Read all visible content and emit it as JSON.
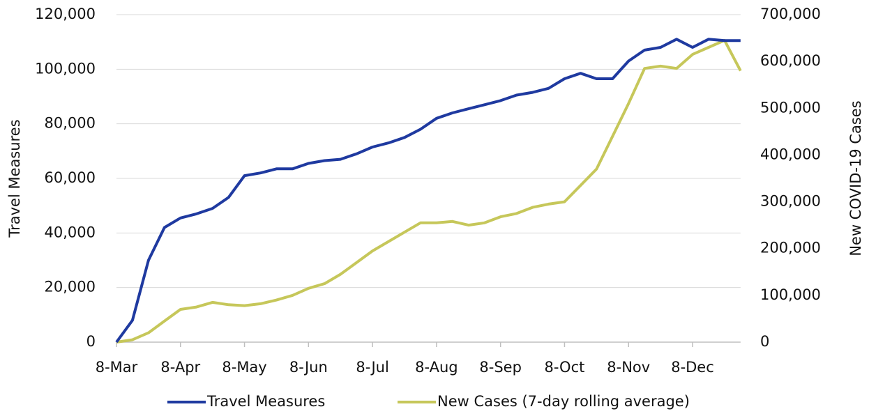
{
  "chart_data": {
    "type": "line",
    "y_label": "Travel Measures",
    "y2_label": "New COVID-19 Cases",
    "categories": [
      "8-Mar",
      null,
      null,
      null,
      "8-Apr",
      null,
      null,
      null,
      "8-May",
      null,
      null,
      null,
      "8-Jun",
      null,
      null,
      null,
      "8-Jul",
      null,
      null,
      null,
      "8-Aug",
      null,
      null,
      null,
      "8-Sep",
      null,
      null,
      null,
      "8-Oct",
      null,
      null,
      null,
      "8-Nov",
      null,
      null,
      null,
      "8-Dec",
      null,
      null,
      null
    ],
    "series": [
      {
        "name": "Travel Measures",
        "color": "#1f3aa0",
        "values": [
          0,
          8000,
          30000,
          42000,
          45500,
          47000,
          49000,
          53000,
          61000,
          62000,
          63500,
          63500,
          65500,
          66500,
          67000,
          69000,
          71500,
          73000,
          75000,
          78000,
          82000,
          84000,
          85500,
          87000,
          88500,
          90500,
          91500,
          93000,
          96500,
          98500,
          96500,
          96500,
          103000,
          107000,
          108000,
          111000,
          108000,
          111000,
          110500,
          110500
        ]
      },
      {
        "name": "New Cases (7-day rolling average)",
        "color": "#c6c75a",
        "axis": "y2",
        "values": [
          0,
          5000,
          20000,
          45000,
          70000,
          75000,
          85000,
          80000,
          78000,
          82000,
          90000,
          100000,
          115000,
          125000,
          145000,
          170000,
          195000,
          215000,
          235000,
          255000,
          255000,
          258000,
          250000,
          255000,
          268000,
          275000,
          288000,
          295000,
          300000,
          335000,
          370000,
          440000,
          510000,
          585000,
          590000,
          585000,
          615000,
          630000,
          645000,
          580000
        ]
      }
    ],
    "ylim": [
      0,
      120000
    ],
    "yticks": [
      0,
      {
        "value": 20000,
        "label": "20,000"
      },
      {
        "value": 40000,
        "label": "40,000"
      },
      {
        "value": 60000,
        "label": "60,000"
      },
      {
        "value": 80000,
        "label": "80,000"
      },
      {
        "value": 100000,
        "label": "100,000"
      },
      {
        "value": 120000,
        "label": "120,000"
      }
    ],
    "y2lim": [
      0,
      700000
    ],
    "y2ticks": [
      0,
      {
        "value": 100000,
        "label": "100,000"
      },
      {
        "value": 200000,
        "label": "200,000"
      },
      {
        "value": 300000,
        "label": "300,000"
      },
      {
        "value": 400000,
        "label": "400,000"
      },
      {
        "value": 500000,
        "label": "500,000"
      },
      {
        "value": 600000,
        "label": "600,000"
      },
      {
        "value": 700000,
        "label": "700,000"
      }
    ],
    "grid": true,
    "legend": "bottom"
  }
}
